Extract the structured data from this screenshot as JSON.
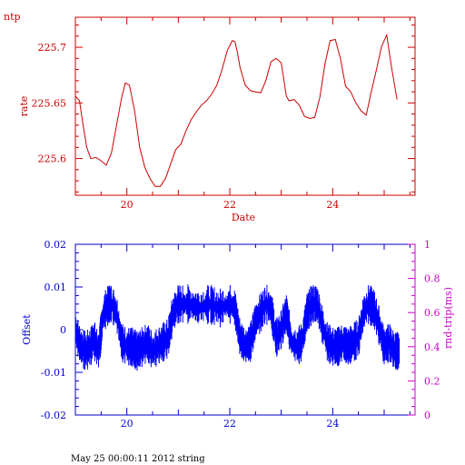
{
  "chart_data": [
    {
      "type": "line",
      "title": "ntp",
      "xlabel": "Date",
      "ylabel": "rate",
      "xlim": [
        19.0,
        25.6
      ],
      "ylim": [
        225.567,
        225.727
      ],
      "xticks": [
        "20",
        "22",
        "24"
      ],
      "yticks": [
        "225.6",
        "225.65",
        "225.7"
      ],
      "grid": false,
      "series": [
        {
          "color": "#cc0000",
          "x": [
            19.0,
            19.08,
            19.15,
            19.22,
            19.3,
            19.4,
            19.5,
            19.6,
            19.7,
            19.8,
            19.9,
            19.97,
            20.05,
            20.15,
            20.25,
            20.35,
            20.45,
            20.55,
            20.65,
            20.75,
            20.85,
            20.95,
            21.05,
            21.15,
            21.25,
            21.35,
            21.45,
            21.55,
            21.65,
            21.75,
            21.85,
            21.95,
            22.05,
            22.1,
            22.15,
            22.2,
            22.3,
            22.4,
            22.5,
            22.6,
            22.7,
            22.8,
            22.9,
            23.0,
            23.1,
            23.15,
            23.25,
            23.35,
            23.45,
            23.55,
            23.65,
            23.75,
            23.85,
            23.95,
            24.05,
            24.15,
            24.25,
            24.35,
            24.45,
            24.55,
            24.65,
            24.75,
            24.85,
            24.95,
            25.05,
            25.15,
            25.25
          ],
          "y": [
            225.656,
            225.652,
            225.63,
            225.61,
            225.6,
            225.601,
            225.598,
            225.594,
            225.605,
            225.63,
            225.655,
            225.668,
            225.666,
            225.643,
            225.61,
            225.592,
            225.582,
            225.575,
            225.575,
            225.582,
            225.595,
            225.608,
            225.613,
            225.625,
            225.635,
            225.642,
            225.648,
            225.652,
            225.658,
            225.666,
            225.68,
            225.697,
            225.706,
            225.705,
            225.695,
            225.682,
            225.666,
            225.661,
            225.66,
            225.659,
            225.67,
            225.687,
            225.69,
            225.686,
            225.656,
            225.652,
            225.653,
            225.648,
            225.638,
            225.636,
            225.637,
            225.655,
            225.685,
            225.706,
            225.707,
            225.69,
            225.665,
            225.66,
            225.65,
            225.643,
            225.639,
            225.66,
            225.68,
            225.701,
            225.711,
            225.68,
            225.653
          ]
        }
      ]
    },
    {
      "type": "line",
      "xlabel": "",
      "ylabel": "Offset",
      "ylabel_right": "rnd-trip(ms)",
      "xlim": [
        19.0,
        25.6
      ],
      "ylim": [
        -0.02,
        0.02
      ],
      "ylim_right": [
        0,
        1
      ],
      "xticks": [
        "20",
        "22",
        "24"
      ],
      "yticks": [
        "0.02",
        "0.01",
        "0",
        "-0.01",
        "-0.02"
      ],
      "yticks_right": [
        "1",
        "0.8",
        "0.6",
        "0.4",
        "0.2",
        "0"
      ],
      "grid": false,
      "series": [
        {
          "color": "#0000ff",
          "x": [
            19.0,
            19.1,
            19.2,
            19.3,
            19.35,
            19.45,
            19.55,
            19.65,
            19.7,
            19.8,
            19.9,
            20.0,
            20.1,
            20.2,
            20.3,
            20.4,
            20.5,
            20.6,
            20.7,
            20.8,
            20.9,
            21.0,
            21.2,
            21.4,
            21.6,
            21.8,
            22.0,
            22.1,
            22.2,
            22.3,
            22.4,
            22.5,
            22.6,
            22.7,
            22.8,
            22.9,
            23.0,
            23.1,
            23.2,
            23.3,
            23.4,
            23.5,
            23.6,
            23.7,
            23.8,
            23.9,
            24.0,
            24.1,
            24.2,
            24.3,
            24.4,
            24.5,
            24.6,
            24.7,
            24.8,
            24.9,
            25.0,
            25.1,
            25.2,
            25.3
          ],
          "y": [
            0.0,
            -0.004,
            -0.005,
            -0.004,
            -0.002,
            -0.005,
            0.004,
            0.006,
            0.006,
            0.004,
            -0.003,
            -0.004,
            -0.004,
            -0.005,
            -0.004,
            -0.003,
            -0.005,
            -0.004,
            -0.003,
            -0.002,
            0.004,
            0.006,
            0.006,
            0.005,
            0.006,
            0.005,
            0.006,
            0.005,
            -0.002,
            -0.004,
            -0.003,
            0.002,
            0.004,
            0.006,
            0.005,
            -0.002,
            0.0,
            0.004,
            -0.003,
            -0.004,
            -0.003,
            0.004,
            0.006,
            0.006,
            0.001,
            -0.003,
            -0.004,
            -0.004,
            -0.003,
            -0.004,
            -0.003,
            -0.002,
            0.004,
            0.006,
            0.005,
            0.001,
            -0.004,
            -0.003,
            -0.005,
            -0.005
          ]
        }
      ]
    }
  ],
  "footer": "May 25 00:00:11 2012 string",
  "colors": {
    "top_axes": "#cc0000",
    "bottom_axes": "#0000cc",
    "right_axis": "#cc00cc"
  }
}
